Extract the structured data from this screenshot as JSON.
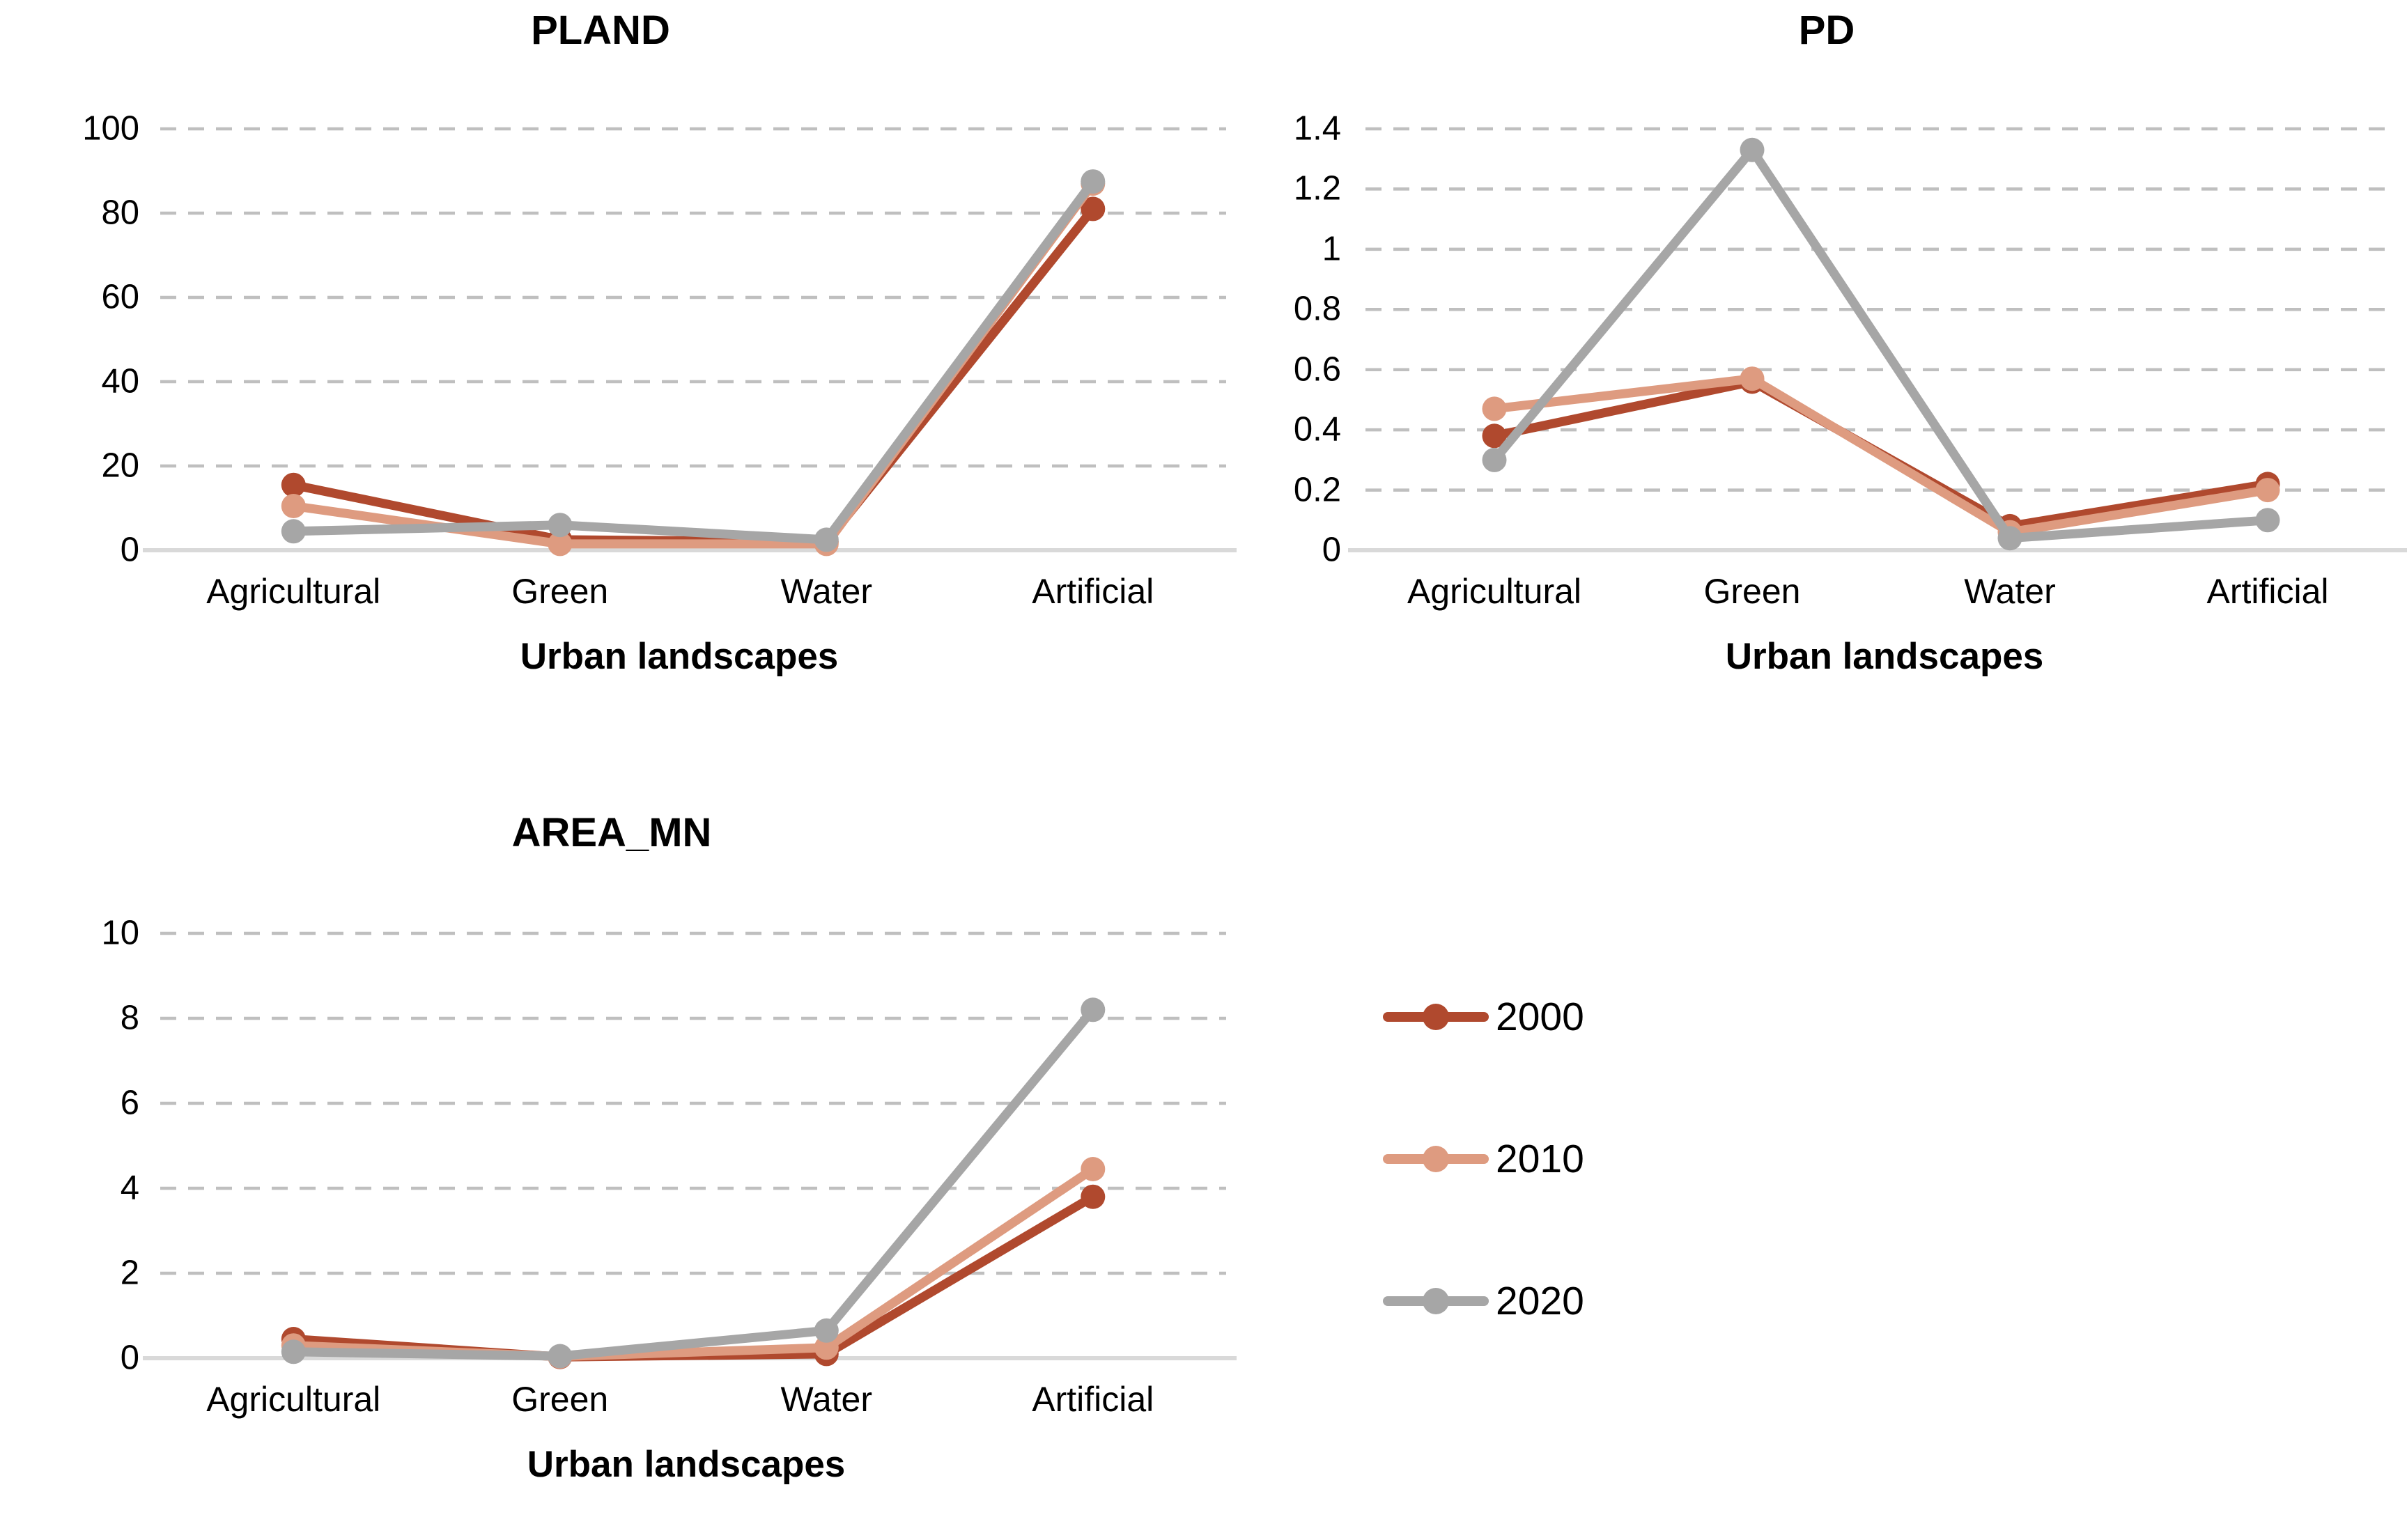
{
  "figure": {
    "background": "#FFFFFF",
    "text_color": "#000000",
    "gridline_color": "#BFBFBF",
    "axis_line_color": "#D9D9D9"
  },
  "legend": {
    "position": "bottom-right-quadrant",
    "items": [
      {
        "label": "2000",
        "color": "#B0492E"
      },
      {
        "label": "2010",
        "color": "#DE9B80"
      },
      {
        "label": "2020",
        "color": "#A6A6A6"
      }
    ]
  },
  "chart_data": [
    {
      "id": "pland",
      "type": "line",
      "title": "PLAND",
      "xlabel": "Urban landscapes",
      "categories": [
        "Agricultural",
        "Green",
        "Water",
        "Artificial"
      ],
      "ylim": [
        0,
        100
      ],
      "ytick_labels": [
        "0",
        "20",
        "40",
        "60",
        "80",
        "100"
      ],
      "grid": "horizontal-dashed",
      "series": [
        {
          "name": "2000",
          "color": "#B0492E",
          "values": [
            15.5,
            2.5,
            2.0,
            81.0
          ]
        },
        {
          "name": "2010",
          "color": "#DE9B80",
          "values": [
            10.5,
            1.5,
            1.5,
            87.0
          ]
        },
        {
          "name": "2020",
          "color": "#A6A6A6",
          "values": [
            4.5,
            6.0,
            2.5,
            87.5
          ]
        }
      ]
    },
    {
      "id": "pd",
      "type": "line",
      "title": "PD",
      "xlabel": "Urban landscapes",
      "categories": [
        "Agricultural",
        "Green",
        "Water",
        "Artificial"
      ],
      "ylim": [
        0,
        1.4
      ],
      "ytick_labels": [
        "0",
        "0.2",
        "0.4",
        "0.6",
        "0.8",
        "1",
        "1.2",
        "1.4"
      ],
      "grid": "horizontal-dashed",
      "series": [
        {
          "name": "2000",
          "color": "#B0492E",
          "values": [
            0.38,
            0.56,
            0.08,
            0.22
          ]
        },
        {
          "name": "2010",
          "color": "#DE9B80",
          "values": [
            0.47,
            0.57,
            0.06,
            0.2
          ]
        },
        {
          "name": "2020",
          "color": "#A6A6A6",
          "values": [
            0.3,
            1.33,
            0.04,
            0.1
          ]
        }
      ]
    },
    {
      "id": "area_mn",
      "type": "line",
      "title": "AREA_MN",
      "xlabel": "Urban landscapes",
      "categories": [
        "Agricultural",
        "Green",
        "Water",
        "Artificial"
      ],
      "ylim": [
        0,
        10
      ],
      "ytick_labels": [
        "0",
        "2",
        "4",
        "6",
        "8",
        "10"
      ],
      "grid": "horizontal-dashed",
      "series": [
        {
          "name": "2000",
          "color": "#B0492E",
          "values": [
            0.45,
            0.03,
            0.1,
            3.8
          ]
        },
        {
          "name": "2010",
          "color": "#DE9B80",
          "values": [
            0.3,
            0.04,
            0.25,
            4.45
          ]
        },
        {
          "name": "2020",
          "color": "#A6A6A6",
          "values": [
            0.15,
            0.05,
            0.65,
            8.2
          ]
        }
      ]
    }
  ]
}
